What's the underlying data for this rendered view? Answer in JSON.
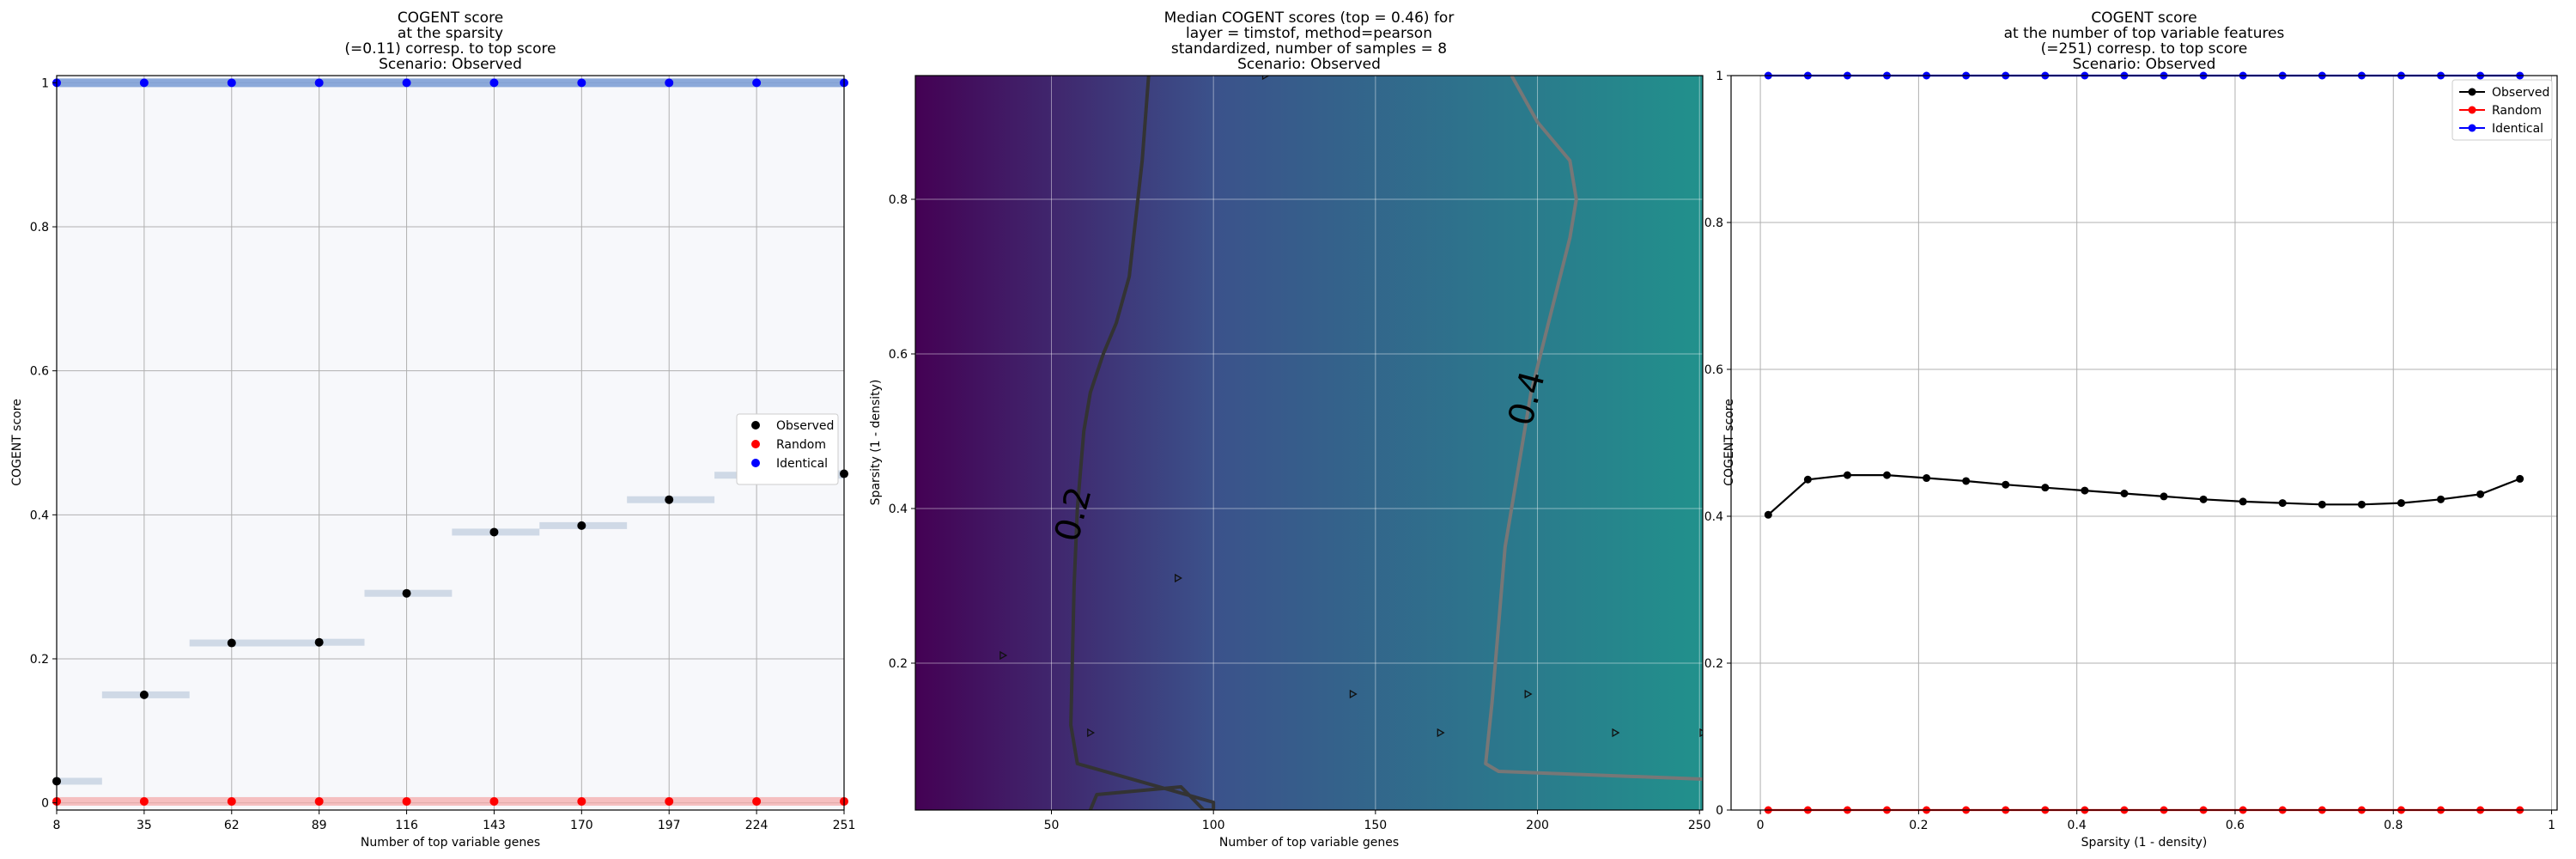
{
  "chart_data": [
    {
      "type": "scatter",
      "title": [
        "COGENT score",
        "at the sparsity",
        "(=0.11) corresp. to top score",
        "Scenario: Observed"
      ],
      "xlabel": "Number of top variable genes",
      "ylabel": "COGENT score",
      "x": [
        8,
        35,
        62,
        89,
        116,
        143,
        170,
        197,
        224,
        251
      ],
      "xticks": [
        8,
        35,
        62,
        89,
        116,
        143,
        170,
        197,
        224,
        251
      ],
      "yticks": [
        0.0,
        0.2,
        0.4,
        0.6,
        0.8,
        1.0
      ],
      "xlim": [
        8,
        251
      ],
      "ylim": [
        -0.01,
        1.01
      ],
      "grid": true,
      "background": "#f7f8fb",
      "series": [
        {
          "name": "Observed",
          "color": "#000000",
          "values": [
            0.03,
            0.15,
            0.222,
            0.223,
            0.291,
            0.376,
            0.385,
            0.421,
            0.455,
            0.457
          ],
          "ranges": [
            [
              8,
              22
            ],
            [
              22,
              49
            ],
            [
              49,
              89
            ],
            [
              89,
              103
            ],
            [
              103,
              130
            ],
            [
              130,
              157
            ],
            [
              157,
              184
            ],
            [
              184,
              211
            ],
            [
              211,
              251
            ],
            [
              238,
              251
            ]
          ]
        },
        {
          "name": "Random",
          "color": "#ff0000",
          "values": [
            0.002,
            0.002,
            0.002,
            0.002,
            0.002,
            0.002,
            0.002,
            0.002,
            0.002,
            0.002
          ]
        },
        {
          "name": "Identical",
          "color": "#0000ff",
          "values": [
            1.0,
            1.0,
            1.0,
            1.0,
            1.0,
            1.0,
            1.0,
            1.0,
            1.0,
            1.0
          ]
        }
      ],
      "legend_position": "center-right"
    },
    {
      "type": "heatmap",
      "title": [
        "Median COGENT scores (top = 0.46) for",
        "layer = timstof, method=pearson",
        "standardized, number of samples = 8",
        "Scenario: Observed"
      ],
      "xlabel": "Number of top variable genes",
      "ylabel": "Sparsity (1 - density)",
      "xlim": [
        8,
        251
      ],
      "ylim": [
        0.01,
        0.96
      ],
      "xticks": [
        50,
        100,
        150,
        200,
        250
      ],
      "yticks": [
        0.2,
        0.4,
        0.6,
        0.8
      ],
      "colormap_low": "#440154",
      "colormap_mid": "#3b528b",
      "colormap_high": "#21918c",
      "contours": [
        {
          "level": "0.2",
          "color": "#333333",
          "points": [
            [
              62,
              0.01
            ],
            [
              64,
              0.03
            ],
            [
              90,
              0.04
            ],
            [
              97,
              0.01
            ],
            [
              100,
              0.01
            ],
            [
              100,
              0.02
            ],
            [
              58,
              0.07
            ],
            [
              56,
              0.12
            ],
            [
              57,
              0.3
            ],
            [
              58,
              0.4
            ],
            [
              60,
              0.5
            ],
            [
              62,
              0.55
            ],
            [
              66,
              0.6
            ],
            [
              70,
              0.64
            ],
            [
              74,
              0.7
            ],
            [
              78,
              0.85
            ],
            [
              80,
              0.96
            ]
          ]
        },
        {
          "level": "0.4",
          "color": "#777777",
          "points": [
            [
              251,
              0.05
            ],
            [
              188,
              0.06
            ],
            [
              184,
              0.07
            ],
            [
              186,
              0.15
            ],
            [
              188,
              0.25
            ],
            [
              190,
              0.35
            ],
            [
              194,
              0.45
            ],
            [
              198,
              0.55
            ],
            [
              204,
              0.65
            ],
            [
              210,
              0.75
            ],
            [
              212,
              0.8
            ],
            [
              210,
              0.85
            ],
            [
              200,
              0.9
            ],
            [
              192,
              0.96
            ]
          ]
        }
      ],
      "markers": [
        [
          35,
          0.21
        ],
        [
          62,
          0.11
        ],
        [
          89,
          0.31
        ],
        [
          116,
          0.96
        ],
        [
          143,
          0.16
        ],
        [
          170,
          0.11
        ],
        [
          197,
          0.16
        ],
        [
          224,
          0.11
        ],
        [
          251,
          0.11
        ]
      ],
      "grid": true
    },
    {
      "type": "line",
      "title": [
        "COGENT score",
        "at the number of top variable features",
        "(=251) corresp. to top score",
        "Scenario: Observed"
      ],
      "xlabel": "Sparsity (1 - density)",
      "ylabel": "COGENT score",
      "x": [
        0.01,
        0.06,
        0.11,
        0.16,
        0.21,
        0.26,
        0.31,
        0.36,
        0.41,
        0.46,
        0.51,
        0.56,
        0.61,
        0.66,
        0.71,
        0.76,
        0.81,
        0.86,
        0.91,
        0.96
      ],
      "xticks": [
        0.0,
        0.2,
        0.4,
        0.6,
        0.8,
        1.0
      ],
      "yticks": [
        0.0,
        0.2,
        0.4,
        0.6,
        0.8,
        1.0
      ],
      "xlim": [
        -0.037,
        1.007
      ],
      "ylim": [
        0.0,
        1.0
      ],
      "grid": true,
      "series": [
        {
          "name": "Observed",
          "color": "#000000",
          "values": [
            0.402,
            0.45,
            0.456,
            0.456,
            0.452,
            0.448,
            0.443,
            0.439,
            0.435,
            0.431,
            0.427,
            0.423,
            0.42,
            0.418,
            0.416,
            0.416,
            0.418,
            0.423,
            0.43,
            0.451
          ]
        },
        {
          "name": "Random",
          "color": "#ff0000",
          "values": [
            0.0,
            0.0,
            0.0,
            0.0,
            0.0,
            0.0,
            0.0,
            0.0,
            0.0,
            0.0,
            0.0,
            0.0,
            0.0,
            0.0,
            0.0,
            0.0,
            0.0,
            0.0,
            0.0,
            0.0
          ]
        },
        {
          "name": "Identical",
          "color": "#0000ff",
          "values": [
            1.0,
            1.0,
            1.0,
            1.0,
            1.0,
            1.0,
            1.0,
            1.0,
            1.0,
            1.0,
            1.0,
            1.0,
            1.0,
            1.0,
            1.0,
            1.0,
            1.0,
            1.0,
            1.0,
            1.0
          ]
        }
      ],
      "legend_position": "top-right"
    }
  ]
}
